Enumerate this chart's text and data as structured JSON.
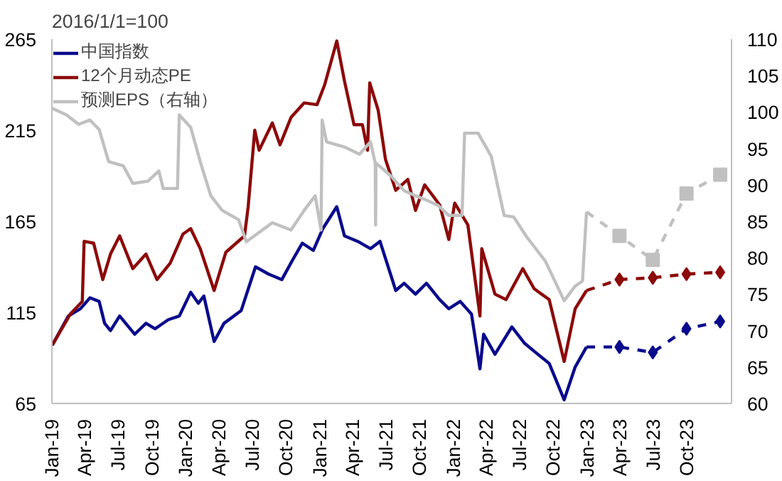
{
  "chart_data": {
    "type": "line",
    "legend": "top left",
    "grid": false,
    "annotations": [
      "2016/1/1=100"
    ],
    "xlim": [
      "2019-01-01",
      "2024-01-31"
    ],
    "xticks": [
      {
        "value": "2019-01-01",
        "label": "Jan-19"
      },
      {
        "value": "2019-04-01",
        "label": "Apr-19"
      },
      {
        "value": "2019-07-01",
        "label": "Jul-19"
      },
      {
        "value": "2019-10-01",
        "label": "Oct-19"
      },
      {
        "value": "2020-01-01",
        "label": "Jan-20"
      },
      {
        "value": "2020-04-01",
        "label": "Apr-20"
      },
      {
        "value": "2020-07-01",
        "label": "Jul-20"
      },
      {
        "value": "2020-10-01",
        "label": "Oct-20"
      },
      {
        "value": "2021-01-01",
        "label": "Jan-21"
      },
      {
        "value": "2021-04-01",
        "label": "Apr-21"
      },
      {
        "value": "2021-07-01",
        "label": "Jul-21"
      },
      {
        "value": "2021-10-01",
        "label": "Oct-21"
      },
      {
        "value": "2022-01-01",
        "label": "Jan-22"
      },
      {
        "value": "2022-04-01",
        "label": "Apr-22"
      },
      {
        "value": "2022-07-01",
        "label": "Jul-22"
      },
      {
        "value": "2022-10-01",
        "label": "Oct-22"
      },
      {
        "value": "2023-01-01",
        "label": "Jan-23"
      },
      {
        "value": "2023-04-01",
        "label": "Apr-23"
      },
      {
        "value": "2023-07-01",
        "label": "Jul-23"
      },
      {
        "value": "2023-10-01",
        "label": "Oct-23"
      }
    ],
    "ylim": [
      65,
      265
    ],
    "yticks": [
      65,
      115,
      165,
      215,
      265
    ],
    "y2lim": [
      60,
      110
    ],
    "y2ticks": [
      60,
      65,
      70,
      75,
      80,
      85,
      90,
      95,
      100,
      105,
      110
    ],
    "series": [
      {
        "name": "中国指数",
        "color": "#0a0a8c",
        "line_style": "solid",
        "marker": "none",
        "x": [
          "2019-01-02",
          "2019-02-15",
          "2019-03-20",
          "2019-04-15",
          "2019-05-10",
          "2019-05-25",
          "2019-06-10",
          "2019-07-05",
          "2019-08-15",
          "2019-09-15",
          "2019-10-10",
          "2019-11-15",
          "2019-12-15",
          "2020-01-15",
          "2020-02-05",
          "2020-02-20",
          "2020-03-19",
          "2020-04-15",
          "2020-06-01",
          "2020-07-10",
          "2020-08-15",
          "2020-09-20",
          "2020-10-20",
          "2020-11-15",
          "2020-12-15",
          "2021-01-10",
          "2021-02-17",
          "2021-03-10",
          "2021-04-15",
          "2021-05-20",
          "2021-06-15",
          "2021-07-28",
          "2021-08-20",
          "2021-09-20",
          "2021-10-20",
          "2021-11-25",
          "2021-12-20",
          "2022-01-20",
          "2022-02-20",
          "2022-03-15",
          "2022-03-25",
          "2022-04-25",
          "2022-06-10",
          "2022-07-15",
          "2022-08-20",
          "2022-09-20",
          "2022-10-31",
          "2022-11-30",
          "2022-12-31"
        ],
        "values": [
          97,
          113,
          117,
          123,
          121,
          109,
          105,
          113,
          103,
          109,
          106,
          111,
          113,
          126,
          120,
          124,
          99,
          109,
          116,
          140,
          136,
          133,
          144,
          153,
          149,
          161,
          173,
          157,
          154,
          150,
          154,
          127,
          131,
          125,
          131,
          122,
          117,
          121,
          114,
          84,
          103,
          92,
          107,
          98,
          92,
          87,
          67,
          85,
          96
        ]
      },
      {
        "color": "#0a0a8c",
        "line_style": "dashed",
        "marker": "diamond",
        "x": [
          "2022-12-31",
          "2023-03-31",
          "2023-06-30",
          "2023-09-30",
          "2023-12-31"
        ],
        "values": [
          96,
          96,
          93,
          106,
          110
        ]
      },
      {
        "name": "12个月动态PE",
        "color": "#8c0a0a",
        "line_style": "solid",
        "marker": "none",
        "x": [
          "2019-01-02",
          "2019-02-20",
          "2019-03-25",
          "2019-03-30",
          "2019-04-25",
          "2019-05-20",
          "2019-06-10",
          "2019-07-05",
          "2019-08-10",
          "2019-09-15",
          "2019-10-15",
          "2019-11-20",
          "2019-12-25",
          "2020-01-15",
          "2020-02-10",
          "2020-03-19",
          "2020-04-20",
          "2020-06-10",
          "2020-06-20",
          "2020-07-08",
          "2020-07-20",
          "2020-08-25",
          "2020-09-15",
          "2020-10-15",
          "2020-11-20",
          "2020-12-25",
          "2021-01-15",
          "2021-02-17",
          "2021-03-10",
          "2021-04-05",
          "2021-04-28",
          "2021-05-12",
          "2021-05-18",
          "2021-06-10",
          "2021-06-30",
          "2021-07-28",
          "2021-08-30",
          "2021-09-20",
          "2021-10-15",
          "2021-11-25",
          "2021-12-20",
          "2022-01-05",
          "2022-02-10",
          "2022-03-15",
          "2022-03-20",
          "2022-04-25",
          "2022-05-25",
          "2022-07-10",
          "2022-08-10",
          "2022-09-20",
          "2022-10-31",
          "2022-11-30",
          "2022-12-31"
        ],
        "values": [
          97,
          114,
          121,
          154,
          153,
          133,
          147,
          157,
          139,
          147,
          133,
          142,
          158,
          161,
          150,
          127,
          148,
          157,
          173,
          215,
          204,
          219,
          207,
          222,
          230,
          229,
          240,
          264,
          242,
          218,
          218,
          204,
          241,
          226,
          199,
          182,
          188,
          171,
          185,
          174,
          155,
          175,
          163,
          113,
          150,
          125,
          122,
          139,
          128,
          122,
          88,
          117,
          127
        ]
      },
      {
        "color": "#8c0a0a",
        "line_style": "dashed",
        "marker": "diamond",
        "x": [
          "2022-12-31",
          "2023-03-31",
          "2023-06-30",
          "2023-09-30",
          "2023-12-31"
        ],
        "values": [
          127,
          133,
          134,
          136,
          137
        ]
      },
      {
        "name": "预测EPS（右轴）",
        "color": "#c0c0c0",
        "axis": "y2",
        "line_style": "solid",
        "marker": "none",
        "x": [
          "2019-01-02",
          "2019-02-10",
          "2019-03-15",
          "2019-04-15",
          "2019-05-10",
          "2019-06-05",
          "2019-07-15",
          "2019-08-10",
          "2019-09-20",
          "2019-10-20",
          "2019-11-01",
          "2019-12-10",
          "2019-12-15",
          "2020-01-15",
          "2020-02-10",
          "2020-03-10",
          "2020-04-10",
          "2020-05-25",
          "2020-06-15",
          "2020-07-15",
          "2020-08-25",
          "2020-10-15",
          "2020-11-20",
          "2020-12-20",
          "2021-01-05",
          "2021-01-08",
          "2021-01-20",
          "2021-03-10",
          "2021-04-20",
          "2021-05-20",
          "2021-06-02",
          "2021-06-03",
          "2021-06-04",
          "2021-07-15",
          "2021-08-20",
          "2021-09-20",
          "2021-10-20",
          "2021-11-20",
          "2021-12-20",
          "2022-01-25",
          "2022-02-01",
          "2022-03-10",
          "2022-04-15",
          "2022-05-20",
          "2022-06-15",
          "2022-07-20",
          "2022-09-10",
          "2022-10-31",
          "2022-11-30",
          "2022-12-20",
          "2022-12-31"
        ],
        "values": [
          100.5,
          99.6,
          98.3,
          98.9,
          97.6,
          93.2,
          92.6,
          90.2,
          90.5,
          91.9,
          89.5,
          89.5,
          99.6,
          97.9,
          93.2,
          88.5,
          86.5,
          85.2,
          82.2,
          83.3,
          84.8,
          83.8,
          86.5,
          88.5,
          83.8,
          98.9,
          95.9,
          95.2,
          94.2,
          95.9,
          93,
          84.5,
          93,
          91.2,
          89.2,
          88.5,
          87.9,
          87.2,
          85.8,
          85.8,
          97.1,
          97.1,
          93.9,
          85.8,
          85.6,
          82.9,
          79.5,
          74.1,
          76.1,
          76.8,
          86.3
        ]
      },
      {
        "color": "#c0c0c0",
        "axis": "y2",
        "line_style": "dashed",
        "marker": "square",
        "x": [
          "2022-12-31",
          "2023-03-31",
          "2023-06-30",
          "2023-09-30",
          "2023-12-31"
        ],
        "values": [
          86.3,
          83,
          79.7,
          88.8,
          91.4
        ]
      }
    ]
  }
}
